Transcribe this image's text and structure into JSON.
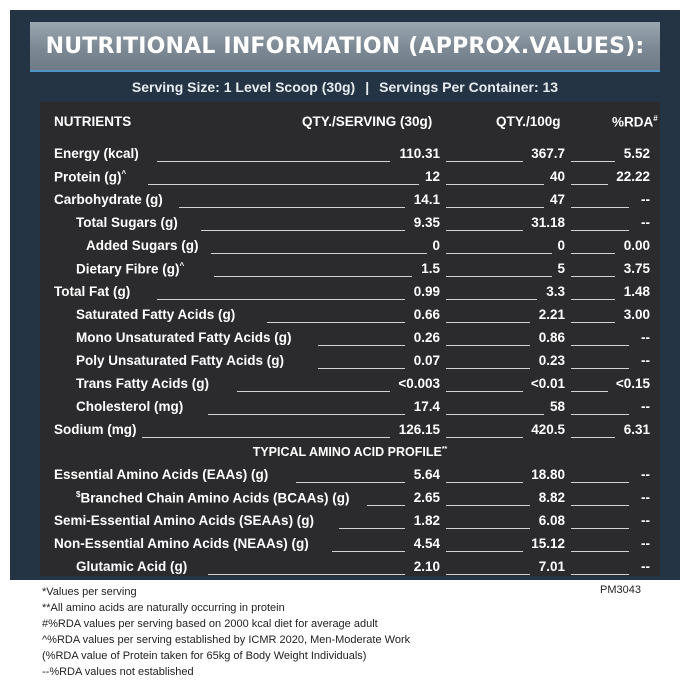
{
  "title": "NUTRITIONAL INFORMATION (APPROX.VALUES):",
  "serving": {
    "size": "Serving Size: 1 Level Scoop (30g)",
    "separator": "|",
    "per_container": "Servings Per Container: 13"
  },
  "columns": {
    "nutrients": "NUTRIENTS",
    "per_serving": "QTY./SERVING (30g)",
    "per_100g": "QTY./100g",
    "rda": "%RDA",
    "rda_mark": "#"
  },
  "rows": [
    {
      "name": "Energy (kcal)",
      "mark": "",
      "serving": "110.31",
      "per100": "367.7",
      "rda": "5.52"
    },
    {
      "name": "Protein (g)",
      "mark": "^",
      "serving": "12",
      "per100": "40",
      "rda": "22.22"
    },
    {
      "name": "Carbohydrate (g)",
      "mark": "",
      "serving": "14.1",
      "per100": "47",
      "rda": "--"
    },
    {
      "name": "Total Sugars (g)",
      "mark": "",
      "serving": "9.35",
      "per100": "31.18",
      "rda": "--"
    },
    {
      "name": "Added Sugars (g)",
      "mark": "",
      "serving": "0",
      "per100": "0",
      "rda": "0.00"
    },
    {
      "name": "Dietary Fibre (g)",
      "mark": "^",
      "serving": "1.5",
      "per100": "5",
      "rda": "3.75"
    },
    {
      "name": "Total Fat (g)",
      "mark": "",
      "serving": "0.99",
      "per100": "3.3",
      "rda": "1.48"
    },
    {
      "name": "Saturated Fatty Acids (g)",
      "mark": "",
      "serving": "0.66",
      "per100": "2.21",
      "rda": "3.00"
    },
    {
      "name": "Mono Unsaturated Fatty Acids (g)",
      "mark": "",
      "serving": "0.26",
      "per100": "0.86",
      "rda": "--"
    },
    {
      "name": "Poly Unsaturated Fatty Acids (g)",
      "mark": "",
      "serving": "0.07",
      "per100": "0.23",
      "rda": "--"
    },
    {
      "name": "Trans Fatty Acids (g)",
      "mark": "",
      "serving": "<0.003",
      "per100": "<0.01",
      "rda": "<0.15"
    },
    {
      "name": "Cholesterol  (mg)",
      "mark": "",
      "serving": "17.4",
      "per100": "58",
      "rda": "--"
    },
    {
      "name": "Sodium (mg)",
      "mark": "",
      "serving": "126.15",
      "per100": "420.5",
      "rda": "6.31"
    }
  ],
  "amino_heading": "TYPICAL AMINO ACID PROFILE",
  "amino_heading_mark": "**",
  "amino_rows": [
    {
      "prefix": "",
      "name": "Essential Amino Acids (EAAs) (g)",
      "serving": "5.64",
      "per100": "18.80",
      "rda": "--"
    },
    {
      "prefix": "$",
      "name": "Branched Chain Amino Acids (BCAAs) (g)",
      "serving": "2.65",
      "per100": "8.82",
      "rda": "--"
    },
    {
      "prefix": "",
      "name": "Semi-Essential Amino Acids (SEAAs) (g)",
      "serving": "1.82",
      "per100": "6.08",
      "rda": "--"
    },
    {
      "prefix": "",
      "name": "Non-Essential Amino Acids (NEAAs) (g)",
      "serving": "4.54",
      "per100": "15.12",
      "rda": "--"
    },
    {
      "prefix": "",
      "name": "Glutamic Acid (g)",
      "serving": "2.10",
      "per100": "7.01",
      "rda": "--"
    }
  ],
  "footnotes": [
    "*Values per serving",
    "**All amino acids are naturally occurring in protein",
    "#%RDA values per serving based on 2000 kcal diet for average adult",
    "^%RDA values per serving established by ICMR 2020, Men-Moderate Work",
    "(%RDA value of Protein taken for 65kg of Body Weight Individuals)",
    "--%RDA values not established"
  ],
  "code": "PM3043"
}
